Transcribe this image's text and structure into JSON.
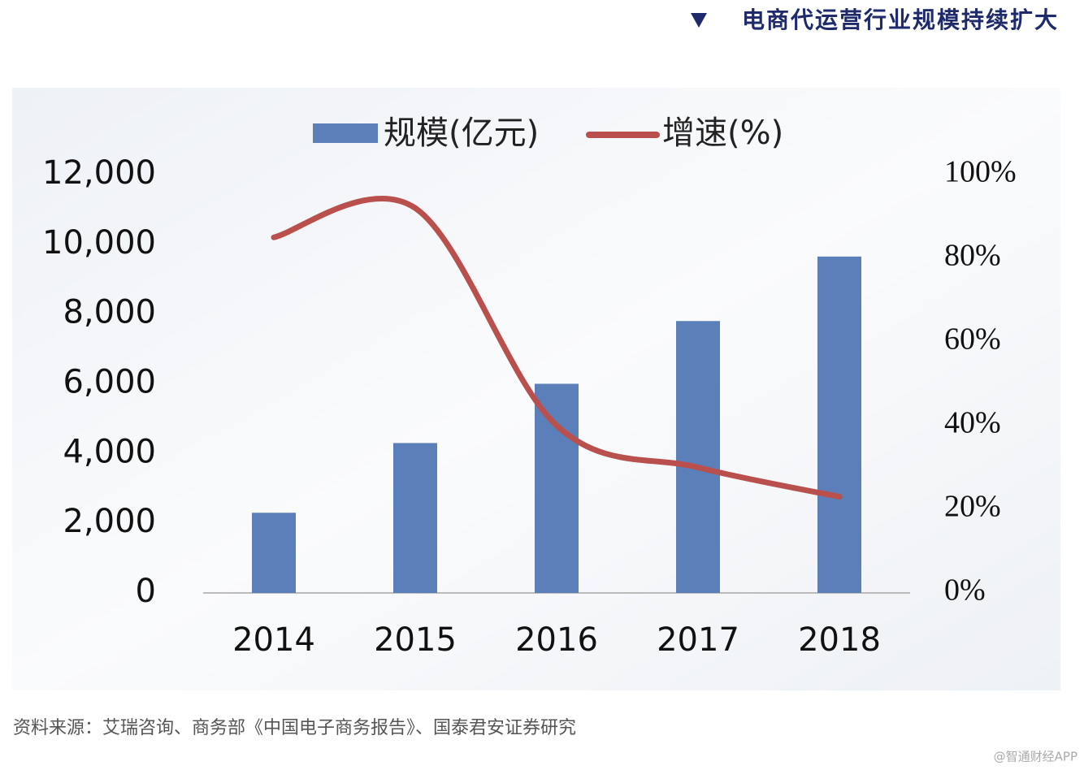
{
  "chart_data": {
    "type": "bar",
    "title": "电商代运营行业规模持续扩大",
    "categories": [
      "2014",
      "2015",
      "2016",
      "2017",
      "2018"
    ],
    "series": [
      {
        "name": "规模(亿元)",
        "type": "bar",
        "color": "#5b80b9",
        "values": [
          2300,
          4300,
          6000,
          7800,
          9650
        ]
      },
      {
        "name": "增速(%)",
        "type": "line",
        "axis": "y2",
        "color": "#b9504e",
        "values": [
          85,
          92,
          40,
          30,
          23
        ]
      }
    ],
    "ylim": [
      0,
      12000
    ],
    "yticks": [
      0,
      {
        "value": 2000,
        "label": "2,000"
      },
      {
        "value": 4000,
        "label": "4,000"
      },
      {
        "value": 6000,
        "label": "6,000"
      },
      {
        "value": 8000,
        "label": "8,000"
      },
      {
        "value": 10000,
        "label": "10,000"
      },
      {
        "value": 12000,
        "label": "12,000"
      }
    ],
    "y2lim": [
      0,
      100
    ],
    "y2ticks": [
      {
        "value": 0,
        "label": "0%"
      },
      {
        "value": 20,
        "label": "20%"
      },
      {
        "value": 40,
        "label": "40%"
      },
      {
        "value": 60,
        "label": "60%"
      },
      {
        "value": 80,
        "label": "80%"
      },
      {
        "value": 100,
        "label": "100%"
      }
    ],
    "grid": false
  },
  "source": "资料来源：艾瑞咨询、商务部《中国电子商务报告》、国泰君安证券研究",
  "watermark": "@智通财经APP"
}
